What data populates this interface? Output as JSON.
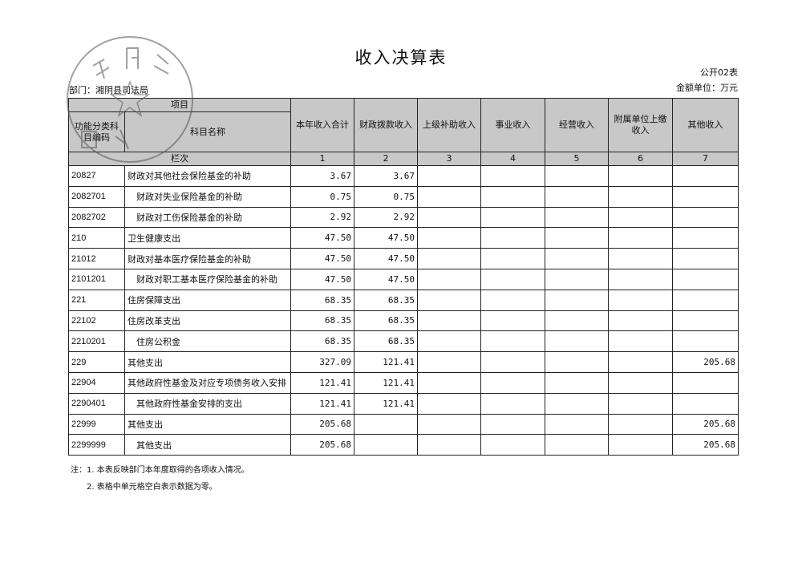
{
  "title": "收入决算表",
  "form_no": "公开02表",
  "unit": "金额单位：万元",
  "department": "部门：湘阴县司法局",
  "stamp_text": "湘阴县司法局",
  "header": {
    "item": "项目",
    "code": "功能分类科目编码",
    "name": "科目名称",
    "seq_label": "栏次",
    "columns": [
      "本年收入合计",
      "财政拨款收入",
      "上级补助收入",
      "事业收入",
      "经营收入",
      "附属单位上缴收入",
      "其他收入"
    ],
    "seq": [
      "1",
      "2",
      "3",
      "4",
      "5",
      "6",
      "7"
    ]
  },
  "rows": [
    {
      "code": "20827",
      "name": "财政对其他社会保险基金的补助",
      "indent": 0,
      "v": [
        "3.67",
        "3.67",
        "",
        "",
        "",
        "",
        ""
      ]
    },
    {
      "code": "2082701",
      "name": "财政对失业保险基金的补助",
      "indent": 1,
      "v": [
        "0.75",
        "0.75",
        "",
        "",
        "",
        "",
        ""
      ]
    },
    {
      "code": "2082702",
      "name": "财政对工伤保险基金的补助",
      "indent": 1,
      "v": [
        "2.92",
        "2.92",
        "",
        "",
        "",
        "",
        ""
      ]
    },
    {
      "code": "210",
      "name": "卫生健康支出",
      "indent": 0,
      "v": [
        "47.50",
        "47.50",
        "",
        "",
        "",
        "",
        ""
      ]
    },
    {
      "code": "21012",
      "name": "财政对基本医疗保险基金的补助",
      "indent": 0,
      "v": [
        "47.50",
        "47.50",
        "",
        "",
        "",
        "",
        ""
      ]
    },
    {
      "code": "2101201",
      "name": "财政对职工基本医疗保险基金的补助",
      "indent": 1,
      "v": [
        "47.50",
        "47.50",
        "",
        "",
        "",
        "",
        ""
      ]
    },
    {
      "code": "221",
      "name": "住房保障支出",
      "indent": 0,
      "v": [
        "68.35",
        "68.35",
        "",
        "",
        "",
        "",
        ""
      ]
    },
    {
      "code": "22102",
      "name": "住房改革支出",
      "indent": 0,
      "v": [
        "68.35",
        "68.35",
        "",
        "",
        "",
        "",
        ""
      ]
    },
    {
      "code": "2210201",
      "name": "住房公积金",
      "indent": 1,
      "v": [
        "68.35",
        "68.35",
        "",
        "",
        "",
        "",
        ""
      ]
    },
    {
      "code": "229",
      "name": "其他支出",
      "indent": 0,
      "v": [
        "327.09",
        "121.41",
        "",
        "",
        "",
        "",
        "205.68"
      ]
    },
    {
      "code": "22904",
      "name": "其他政府性基金及对应专项债务收入安排",
      "indent": 0,
      "v": [
        "121.41",
        "121.41",
        "",
        "",
        "",
        "",
        ""
      ]
    },
    {
      "code": "2290401",
      "name": "其他政府性基金安排的支出",
      "indent": 1,
      "v": [
        "121.41",
        "121.41",
        "",
        "",
        "",
        "",
        ""
      ]
    },
    {
      "code": "22999",
      "name": "其他支出",
      "indent": 0,
      "v": [
        "205.68",
        "",
        "",
        "",
        "",
        "",
        "205.68"
      ]
    },
    {
      "code": "2299999",
      "name": "其他支出",
      "indent": 1,
      "v": [
        "205.68",
        "",
        "",
        "",
        "",
        "",
        "205.68"
      ]
    }
  ],
  "notes": [
    "注：1. 本表反映部门本年度取得的各项收入情况。",
    "2. 表格中单元格空白表示数据为零。"
  ]
}
